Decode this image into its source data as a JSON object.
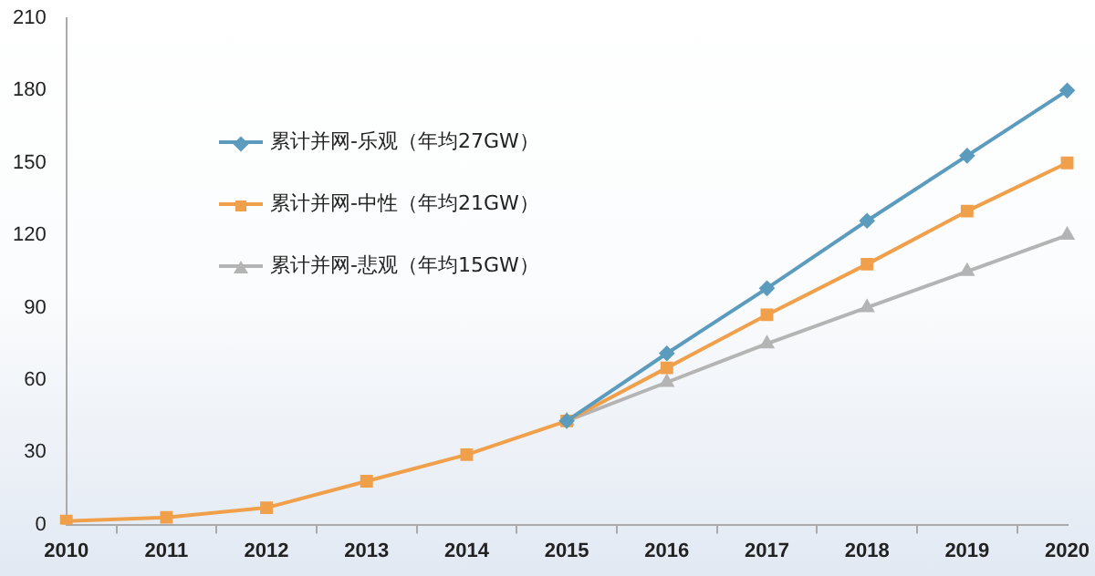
{
  "chart_data": {
    "type": "line",
    "categories": [
      "2010",
      "2011",
      "2012",
      "2013",
      "2014",
      "2015",
      "2016",
      "2017",
      "2018",
      "2019",
      "2020"
    ],
    "series": [
      {
        "name": "累计并网-乐观（年均27GW）",
        "color": "#5b9bbd",
        "marker": "diamond",
        "values": [
          null,
          null,
          null,
          null,
          null,
          43,
          71,
          98,
          126,
          153,
          180
        ]
      },
      {
        "name": "累计并网-中性（年均21GW）",
        "color": "#f0a04b",
        "marker": "square",
        "values": [
          1.5,
          3,
          7,
          18,
          29,
          43,
          65,
          87,
          108,
          130,
          150
        ]
      },
      {
        "name": "累计并网-悲观（年均15GW）",
        "color": "#b4b4b4",
        "marker": "triangle",
        "values": [
          null,
          null,
          null,
          null,
          null,
          43,
          59,
          75,
          90,
          105,
          120
        ]
      }
    ],
    "ylim": [
      0,
      210
    ],
    "yticks": [
      0,
      30,
      60,
      90,
      120,
      150,
      180,
      210
    ],
    "grid": false,
    "legend": "top left"
  }
}
